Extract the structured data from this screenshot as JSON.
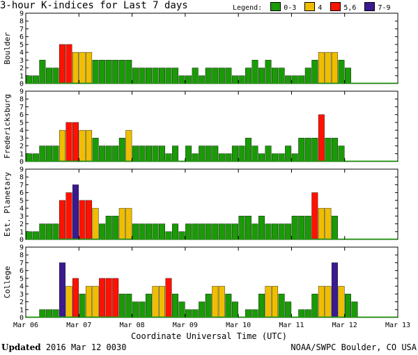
{
  "title": "3-hour K-indices for Last 7 days",
  "legend": {
    "label": "Legend:",
    "items": [
      {
        "label": "0-3",
        "color": "#1a9a06"
      },
      {
        "label": "4",
        "color": "#f0be00"
      },
      {
        "label": "5,6",
        "color": "#ff1200"
      },
      {
        "label": "7-9",
        "color": "#3a1a8e"
      }
    ]
  },
  "xaxis_title": "Coordinate Universal Time (UTC)",
  "footer": {
    "updated_label": "Updated",
    "updated_value": "2016 Mar 12 0030",
    "source": "NOAA/SWPC Boulder, CO USA"
  },
  "chart_data": [
    {
      "type": "bar",
      "title": "Boulder",
      "ylabel": "Boulder",
      "ylim": [
        0,
        9
      ],
      "yticks": [
        0,
        1,
        2,
        3,
        4,
        5,
        6,
        7,
        8,
        9
      ],
      "xlim": [
        0,
        56
      ],
      "xticks": [
        "Mar 06",
        "Mar 07",
        "Mar 08",
        "Mar 09",
        "Mar 10",
        "Mar 11",
        "Mar 12",
        "Mar 13"
      ],
      "interval": "3 hours",
      "values": [
        1,
        1,
        3,
        2,
        2,
        5,
        5,
        4,
        4,
        4,
        3,
        3,
        3,
        3,
        3,
        3,
        2,
        2,
        2,
        2,
        2,
        2,
        2,
        1,
        1,
        2,
        1,
        2,
        2,
        2,
        2,
        1,
        1,
        2,
        3,
        2,
        3,
        2,
        2,
        1,
        1,
        1,
        2,
        3,
        4,
        4,
        4,
        3,
        2
      ]
    },
    {
      "type": "bar",
      "title": "Fredericksburg",
      "ylabel": "Fredericksburg",
      "ylim": [
        0,
        9
      ],
      "yticks": [
        0,
        1,
        2,
        3,
        4,
        5,
        6,
        7,
        8,
        9
      ],
      "xlim": [
        0,
        56
      ],
      "xticks": [
        "Mar 06",
        "Mar 07",
        "Mar 08",
        "Mar 09",
        "Mar 10",
        "Mar 11",
        "Mar 12",
        "Mar 13"
      ],
      "interval": "3 hours",
      "values": [
        1,
        1,
        2,
        2,
        2,
        4,
        5,
        5,
        4,
        4,
        3,
        2,
        2,
        2,
        3,
        4,
        2,
        2,
        2,
        2,
        2,
        1,
        2,
        0,
        2,
        1,
        2,
        2,
        2,
        1,
        1,
        2,
        2,
        3,
        2,
        1,
        2,
        1,
        1,
        2,
        1,
        3,
        3,
        3,
        6,
        3,
        3,
        2
      ]
    },
    {
      "type": "bar",
      "title": "Est. Planetary",
      "ylabel": "Est. Planetary",
      "ylim": [
        0,
        9
      ],
      "yticks": [
        0,
        1,
        2,
        3,
        4,
        5,
        6,
        7,
        8,
        9
      ],
      "xlim": [
        0,
        56
      ],
      "xticks": [
        "Mar 06",
        "Mar 07",
        "Mar 08",
        "Mar 09",
        "Mar 10",
        "Mar 11",
        "Mar 12",
        "Mar 13"
      ],
      "interval": "3 hours",
      "values": [
        1,
        1,
        2,
        2,
        2,
        5,
        6,
        7,
        5,
        5,
        4,
        2,
        3,
        3,
        4,
        4,
        2,
        2,
        2,
        2,
        2,
        1,
        2,
        1,
        2,
        2,
        2,
        2,
        2,
        2,
        2,
        2,
        3,
        3,
        2,
        3,
        2,
        2,
        2,
        2,
        3,
        3,
        3,
        6,
        4,
        4,
        3
      ]
    },
    {
      "type": "bar",
      "title": "College",
      "ylabel": "College",
      "ylim": [
        0,
        9
      ],
      "yticks": [
        0,
        1,
        2,
        3,
        4,
        5,
        6,
        7,
        8,
        9
      ],
      "xlim": [
        0,
        56
      ],
      "xticks": [
        "Mar 06",
        "Mar 07",
        "Mar 08",
        "Mar 09",
        "Mar 10",
        "Mar 11",
        "Mar 12",
        "Mar 13"
      ],
      "interval": "3 hours",
      "values": [
        0,
        0,
        1,
        1,
        1,
        7,
        4,
        5,
        3,
        4,
        4,
        5,
        5,
        5,
        3,
        3,
        2,
        2,
        3,
        4,
        4,
        5,
        3,
        2,
        1,
        1,
        2,
        3,
        4,
        4,
        3,
        2,
        0,
        1,
        1,
        3,
        4,
        4,
        3,
        2,
        0,
        1,
        1,
        3,
        4,
        4,
        7,
        4,
        3,
        2
      ]
    }
  ]
}
